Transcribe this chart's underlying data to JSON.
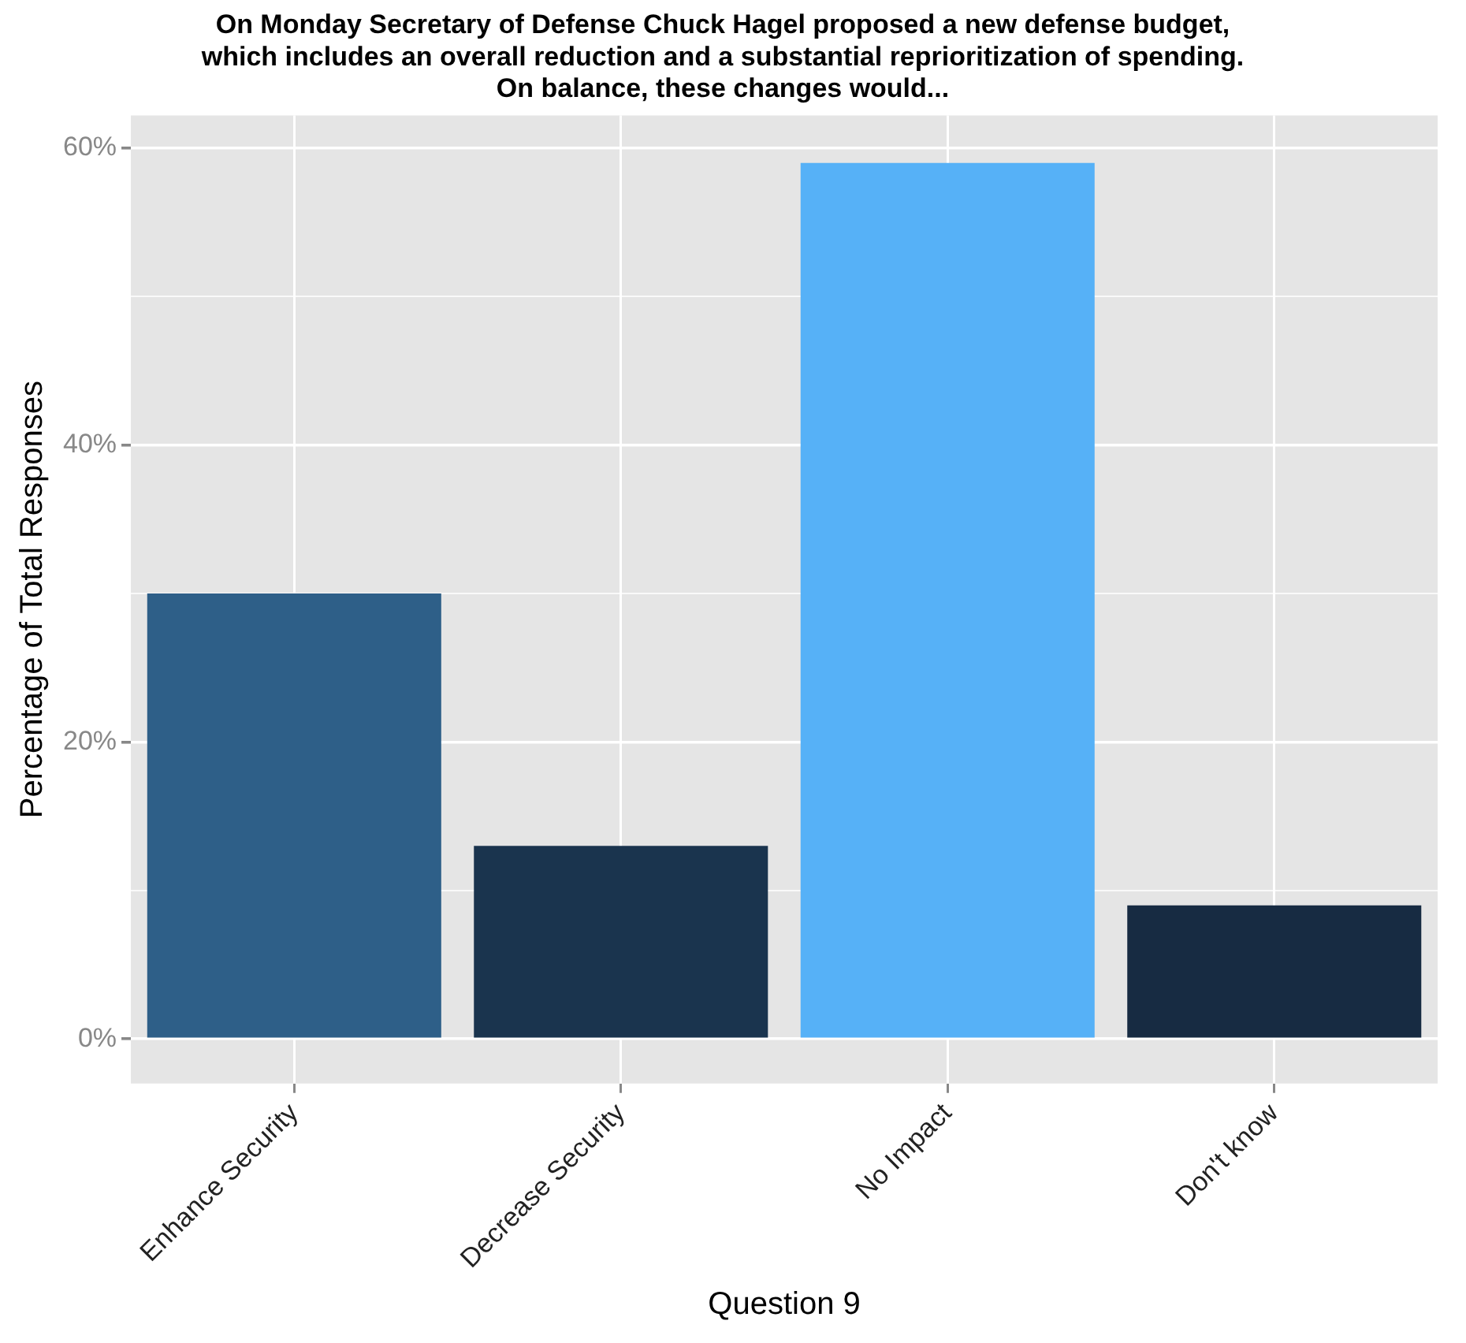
{
  "chart_data": {
    "type": "bar",
    "title": "On Monday Secretary of Defense Chuck Hagel proposed a new defense budget,\nwhich includes an overall reduction and a substantial reprioritization of spending.\nOn balance, these changes would...",
    "xlabel": "Question 9",
    "ylabel": "Percentage of Total Responses",
    "categories": [
      "Enhance Security",
      "Decrease Security",
      "No Impact",
      "Don't know"
    ],
    "values": [
      30,
      13,
      59,
      9
    ],
    "colors": [
      "#2e5f88",
      "#1a344e",
      "#56b1f7",
      "#172b42"
    ],
    "ylim": [
      -3,
      62.2
    ],
    "yticks": [
      {
        "value": 0,
        "label": "0%"
      },
      {
        "value": 10,
        "label": null
      },
      {
        "value": 20,
        "label": "20%"
      },
      {
        "value": 30,
        "label": null
      },
      {
        "value": 40,
        "label": "40%"
      },
      {
        "value": 50,
        "label": null
      },
      {
        "value": 60,
        "label": "60%"
      }
    ],
    "grid": true
  }
}
